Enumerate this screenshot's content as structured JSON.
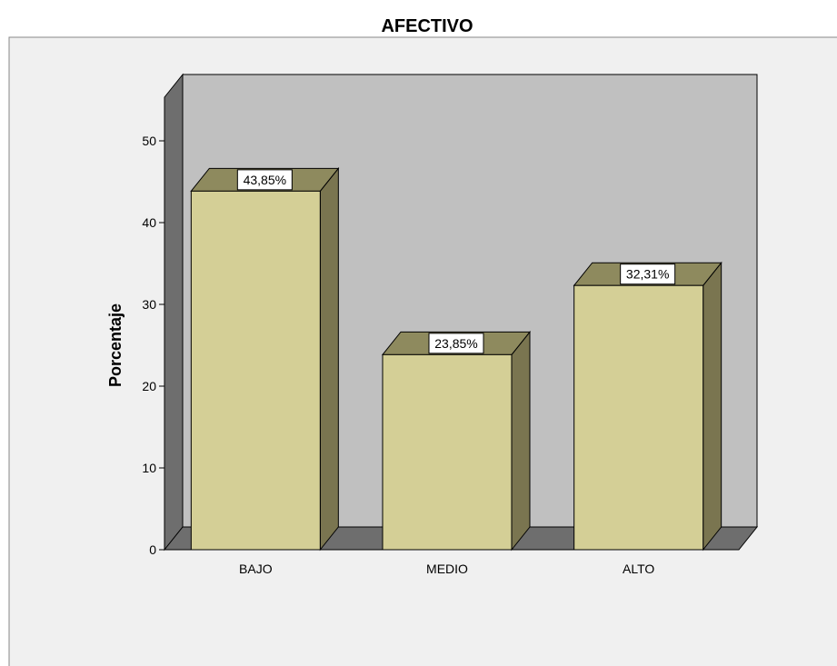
{
  "chart_data": {
    "type": "bar",
    "title": "AFECTIVO",
    "xlabel": "",
    "ylabel": "Porcentaje",
    "categories": [
      "BAJO",
      "MEDIO",
      "ALTO"
    ],
    "values": [
      43.85,
      23.85,
      32.31
    ],
    "value_labels": [
      "43,85%",
      "23,85%",
      "32,31%"
    ],
    "ylim": [
      0,
      50
    ],
    "yticks": [
      0,
      10,
      20,
      30,
      40,
      50
    ],
    "grid": false,
    "legend": "none",
    "style": "3d"
  },
  "colors": {
    "frame_bg": "#f0f0f0",
    "plot_back": "#c0c0c0",
    "plot_side": "#6e6e6e",
    "bar_front": "#d4cf96",
    "bar_top": "#8e8a5e",
    "bar_side": "#7a7550",
    "label_bg": "#ffffff"
  }
}
